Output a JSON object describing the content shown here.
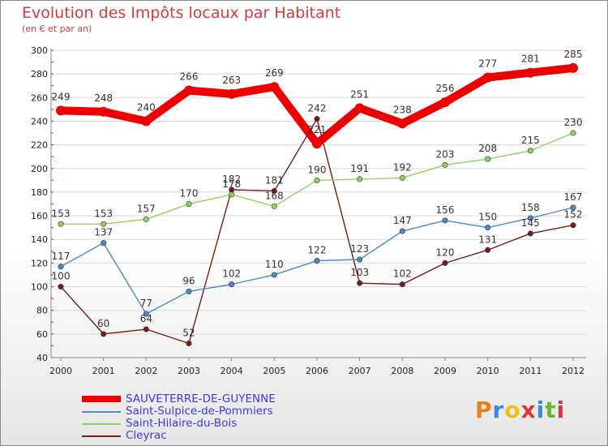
{
  "title": "Evolution des Impôts locaux par Habitant",
  "subtitle": "(en € et par an)",
  "logo": {
    "text": "Proxiti",
    "colors": [
      "#e8821e",
      "#3a8ad8",
      "#e8c21e",
      "#d43a3a",
      "#3a8ad8",
      "#6ab82e",
      "#d43a3a"
    ]
  },
  "chart_data": {
    "type": "line",
    "x": [
      "2000",
      "2001",
      "2002",
      "2003",
      "2004",
      "2005",
      "2006",
      "2007",
      "2008",
      "2009",
      "2010",
      "2011",
      "2012"
    ],
    "ylim": [
      40,
      300
    ],
    "yticks": [
      40,
      60,
      80,
      100,
      120,
      140,
      160,
      180,
      200,
      220,
      240,
      260,
      280,
      300
    ],
    "grid": "horizontal",
    "legend_placement": "bottom",
    "series": [
      {
        "name": "SAUVETERRE-DE-GUYENNE",
        "color": "#ee0000",
        "values": [
          249,
          248,
          240,
          266,
          263,
          269,
          221,
          251,
          238,
          256,
          277,
          281,
          285
        ]
      },
      {
        "name": "Saint-Sulpice-de-Pommiers",
        "color": "#4a8ac8",
        "values": [
          117,
          137,
          77,
          96,
          102,
          110,
          122,
          123,
          147,
          156,
          150,
          158,
          167
        ]
      },
      {
        "name": "Saint-Hilaire-du-Bois",
        "color": "#8ed45a",
        "values": [
          153,
          153,
          157,
          170,
          178,
          168,
          190,
          191,
          192,
          203,
          208,
          215,
          230
        ]
      },
      {
        "name": "Cleyrac",
        "color": "#7a1a1a",
        "values": [
          100,
          60,
          64,
          52,
          182,
          181,
          242,
          103,
          102,
          120,
          131,
          145,
          152
        ]
      }
    ]
  }
}
